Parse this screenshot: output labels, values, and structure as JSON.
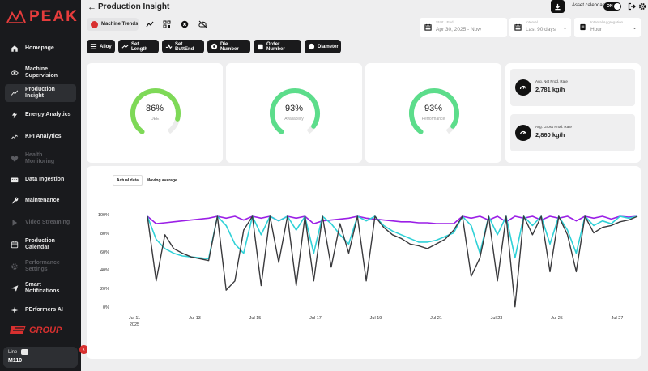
{
  "app": {
    "logo_text": "PEAK",
    "group_logo_text": "GROUP"
  },
  "sidebar": {
    "items": [
      {
        "label": "Homepage",
        "icon": "home-icon",
        "state": "normal"
      },
      {
        "label": "Machine Supervision",
        "icon": "eye-icon",
        "state": "normal"
      },
      {
        "label": "Production Insight",
        "icon": "trend-icon",
        "state": "active"
      },
      {
        "label": "Energy Analytics",
        "icon": "bolt-icon",
        "state": "normal"
      },
      {
        "label": "KPI Analytics",
        "icon": "chart-line-icon",
        "state": "normal"
      },
      {
        "label": "Health Monitoring",
        "icon": "heart-icon",
        "state": "disabled"
      },
      {
        "label": "Data Ingestion",
        "icon": "keyboard-icon",
        "state": "normal"
      },
      {
        "label": "Maintenance",
        "icon": "wrench-icon",
        "state": "normal"
      },
      {
        "label": "Video Streaming",
        "icon": "play-icon",
        "state": "disabled"
      },
      {
        "label": "Production Calendar",
        "icon": "calendar-icon",
        "state": "normal"
      },
      {
        "label": "Performance Settings",
        "icon": "gear-icon",
        "state": "disabled"
      },
      {
        "label": "Smart Notifications",
        "icon": "send-icon",
        "state": "normal"
      },
      {
        "label": "PErformers AI",
        "icon": "sparkle-icon",
        "state": "normal"
      }
    ],
    "line": {
      "label": "Line",
      "value": "M110"
    }
  },
  "header": {
    "title": "Production Insight",
    "asset_calendar_label": "Asset calendar",
    "toggle_label": "ON"
  },
  "toolbar": {
    "machine_trends_label": "Machine Trends"
  },
  "filters": {
    "date": {
      "label": "Start - End",
      "value": "Apr 30, 2025 - Now"
    },
    "interval": {
      "label": "Interval",
      "value": "Last 90 days"
    },
    "aggregation": {
      "label": "Interval Aggregation",
      "value": "Hour"
    }
  },
  "chips": [
    "Alloy",
    "Set Length",
    "Set ButtEnd",
    "Die Number",
    "Order Number",
    "Diameter"
  ],
  "gauges": [
    {
      "value_text": "86%",
      "value": 0.86,
      "label": "OEE",
      "color": "#7ed957"
    },
    {
      "value_text": "93%",
      "value": 0.93,
      "label": "Availability",
      "color": "#5cdd8b"
    },
    {
      "value_text": "93%",
      "value": 0.93,
      "label": "Performance",
      "color": "#5cdd8b"
    }
  ],
  "rates": [
    {
      "label": "Avg. Net Prod. Rate",
      "value": "2,781 kg/h"
    },
    {
      "label": "Avg. Gross Prod. Rate",
      "value": "2,860 kg/h"
    }
  ],
  "chart_legend": {
    "actual": "Actual data",
    "moving": "Moving average"
  },
  "chart_data": {
    "type": "line",
    "x_ticks": [
      "Jul 11\n2025",
      "Jul 13",
      "Jul 15",
      "Jul 17",
      "Jul 19",
      "Jul 21",
      "Jul 23",
      "Jul 25",
      "Jul 27"
    ],
    "y_ticks": [
      "100%",
      "80%",
      "60%",
      "40%",
      "20%",
      "0%"
    ],
    "ylim": [
      0,
      100
    ],
    "series": [
      {
        "color": "#9b1fe6",
        "values": [
          100,
          92,
          93,
          94,
          95,
          96,
          97,
          98,
          100,
          98,
          100,
          96,
          100,
          98,
          100,
          95,
          100,
          98,
          100,
          92,
          95,
          96,
          97,
          98,
          100,
          98,
          97,
          96,
          95,
          94,
          94,
          93,
          93,
          92,
          92,
          92,
          100,
          98,
          100,
          96,
          100,
          94,
          100,
          98,
          100,
          96,
          100,
          98,
          100,
          95,
          100,
          98,
          100,
          97,
          100,
          99,
          100
        ]
      },
      {
        "color": "#2fd1d7",
        "values": [
          100,
          75,
          65,
          60,
          57,
          56,
          55,
          54,
          100,
          90,
          70,
          60,
          100,
          80,
          100,
          95,
          100,
          85,
          100,
          60,
          100,
          92,
          80,
          70,
          100,
          95,
          100,
          90,
          84,
          80,
          76,
          72,
          72,
          74,
          78,
          82,
          100,
          90,
          60,
          100,
          80,
          100,
          55,
          100,
          90,
          100,
          70,
          100,
          85,
          60,
          100,
          90,
          95,
          92,
          100,
          98,
          100
        ]
      },
      {
        "color": "#3a3a3d",
        "values": [
          100,
          30,
          80,
          65,
          60,
          56,
          54,
          52,
          100,
          20,
          30,
          85,
          100,
          25,
          100,
          50,
          100,
          25,
          100,
          30,
          100,
          45,
          92,
          60,
          100,
          30,
          100,
          88,
          80,
          76,
          70,
          68,
          65,
          70,
          75,
          85,
          100,
          35,
          55,
          100,
          30,
          100,
          2,
          100,
          80,
          100,
          40,
          100,
          80,
          40,
          100,
          82,
          88,
          90,
          94,
          96,
          100
        ]
      }
    ]
  }
}
